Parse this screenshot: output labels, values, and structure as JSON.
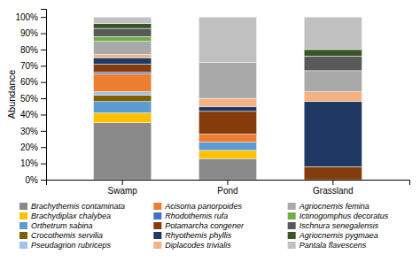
{
  "chart_data": {
    "type": "bar",
    "stacked": true,
    "categories": [
      "Swamp",
      "Pond",
      "Grassland"
    ],
    "series": [
      {
        "name": "Brachythemis contaminata",
        "color": "#898989",
        "values": [
          35,
          13,
          0
        ]
      },
      {
        "name": "Brachydiplax chalybea",
        "color": "#ffc000",
        "values": [
          6,
          5,
          0
        ]
      },
      {
        "name": "Orthetrum sabina",
        "color": "#5b9bd5",
        "values": [
          7,
          5,
          0
        ]
      },
      {
        "name": "Crocothemis servilia",
        "color": "#7f6000",
        "values": [
          4,
          0,
          0
        ]
      },
      {
        "name": "Pseudagrion rubriceps",
        "color": "#9dc3e6",
        "values": [
          2,
          0,
          0
        ]
      },
      {
        "name": "Acisoma panorpoides",
        "color": "#ed7d31",
        "values": [
          11,
          5,
          0
        ]
      },
      {
        "name": "Rhodothemis rufa",
        "color": "#4472c4",
        "values": [
          1,
          0,
          0
        ]
      },
      {
        "name": "Potamarcha congener",
        "color": "#843c0c",
        "values": [
          5,
          14,
          8
        ]
      },
      {
        "name": "Rhyothemis phyllis",
        "color": "#1f3864",
        "values": [
          4,
          3,
          40
        ]
      },
      {
        "name": "Diplacodes trivialis",
        "color": "#f4b183",
        "values": [
          2,
          5,
          6
        ]
      },
      {
        "name": "Agriocnemis femina",
        "color": "#a9a9a9",
        "values": [
          8,
          22,
          13
        ]
      },
      {
        "name": "Ictinogomphus decoratus",
        "color": "#70ad47",
        "values": [
          3,
          0,
          0
        ]
      },
      {
        "name": "Ischnura senegalensis",
        "color": "#595959",
        "values": [
          5,
          0,
          9
        ]
      },
      {
        "name": "Agriocnemis pygmaea",
        "color": "#375623",
        "values": [
          3,
          0,
          4
        ]
      },
      {
        "name": "Pantala flavescens",
        "color": "#c0c0c0",
        "values": [
          4,
          28,
          20
        ]
      }
    ],
    "ylabel": "Abundance",
    "ylim": [
      0,
      105
    ],
    "yticks": [
      {
        "value": 0,
        "label": "0%"
      },
      {
        "value": 10,
        "label": "10%"
      },
      {
        "value": 20,
        "label": "20%"
      },
      {
        "value": 30,
        "label": "30%"
      },
      {
        "value": 40,
        "label": "40%"
      },
      {
        "value": 50,
        "label": "50%"
      },
      {
        "value": 60,
        "label": "60%"
      },
      {
        "value": 70,
        "label": "70%"
      },
      {
        "value": 80,
        "label": "80%"
      },
      {
        "value": 90,
        "label": "90%"
      },
      {
        "value": 100,
        "label": "100%"
      }
    ],
    "grid": false,
    "legend": "bottom"
  }
}
